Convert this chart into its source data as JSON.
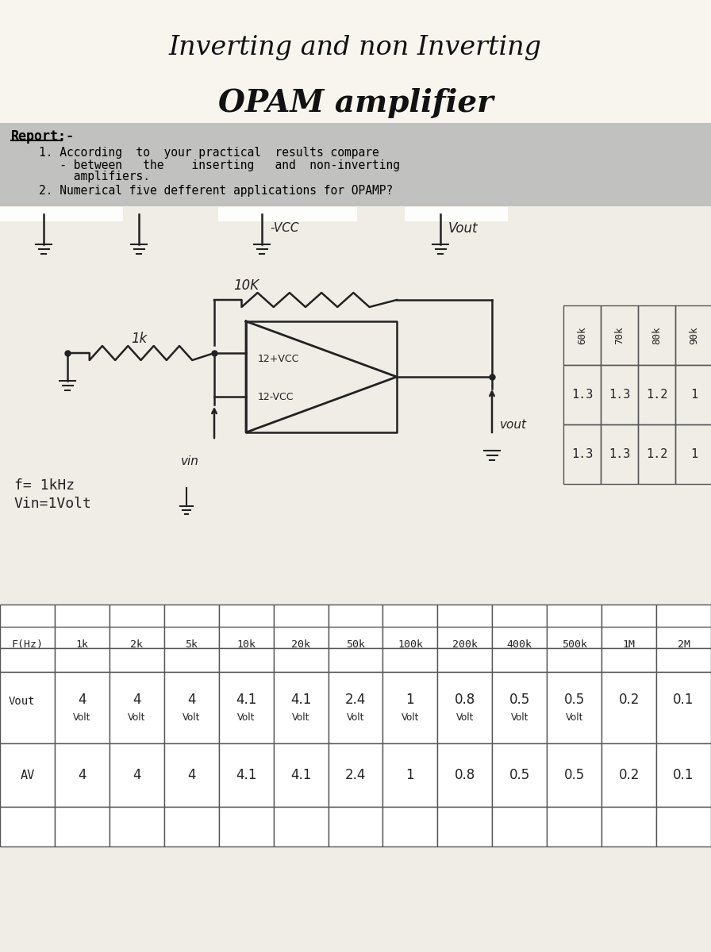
{
  "title_line1": "Inverting and non Inverting",
  "title_line2": "OPAM amplifier",
  "report_header": "Report:-",
  "report_q1_line1": "    1. According  to  your practical  results compare",
  "report_q1_line2": "       - between   the    inserting   and  non-inverting",
  "report_q1_line3": "         amplifiers.",
  "report_q2": "    2. Numerical five defferent applications for OPAMP?",
  "neg_vcc": "-VCC",
  "vout_top": "Vout",
  "resistor_10k": "10K",
  "resistor_1k": "1k",
  "pos_vcc": "12+VCC",
  "neg_vcc2": "12-VCC",
  "vin_label": "vin",
  "vout_bot": "vout",
  "freq": "f= 1kHz",
  "vin_val": "Vin=1Volt",
  "side_rows": [
    "60k",
    "70k",
    "80k",
    "90k"
  ],
  "side_col1": [
    "1.3",
    "1.3",
    "1.2",
    "1"
  ],
  "side_col2": [
    "1.3",
    "1.3",
    "1.2",
    "1"
  ],
  "table_headers": [
    "F(Hz)",
    "1k",
    "2k",
    "5k",
    "10k",
    "20k",
    "50k",
    "100k",
    "200k",
    "400k",
    "500k",
    "1M",
    "2M"
  ],
  "table_vout_num": [
    "4",
    "4",
    "4",
    "4.1",
    "4.1",
    "2.4",
    "1",
    "0.8",
    "0.5",
    "0.5",
    "0.2",
    "0.1"
  ],
  "table_vout_unit": [
    "Volt",
    "Volt",
    "Volt",
    "Volt",
    "Volt",
    "Volt",
    "Volt",
    "Volt",
    "Volt",
    "Volt",
    "",
    ""
  ],
  "table_av": [
    "4",
    "4",
    "4",
    "4.1",
    "4.1",
    "2.4",
    "1",
    "0.8",
    "0.5",
    "0.5",
    "0.2",
    "0.1"
  ],
  "bg_color": "#c8c4b8",
  "paper_color": "#f0ede6",
  "report_bg": "#b8b8b8",
  "circuit_bg": "#e8e5de",
  "lc": "#222222"
}
